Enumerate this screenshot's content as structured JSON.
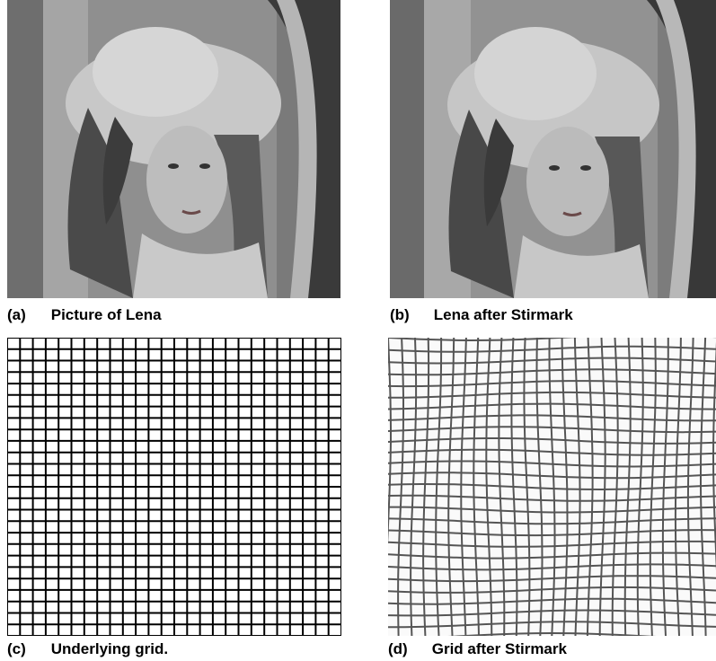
{
  "figures": [
    {
      "tag": "(a)",
      "caption": "Picture of Lena",
      "content": "photo",
      "pictured": "Lena"
    },
    {
      "tag": "(b)",
      "caption": "Lena after Stirmark",
      "content": "photo",
      "pictured": "Lena distorted by Stirmark"
    },
    {
      "tag": "(c)",
      "caption": "Underlying grid.",
      "content": "grid"
    },
    {
      "tag": "(d)",
      "caption": "Grid after Stirmark",
      "content": "grid-distorted"
    }
  ],
  "colors": {
    "background": "#ffffff",
    "grid_line": "#000000",
    "distorted_grid_line": "#555555",
    "photo_tone": "#9a9a9a"
  }
}
